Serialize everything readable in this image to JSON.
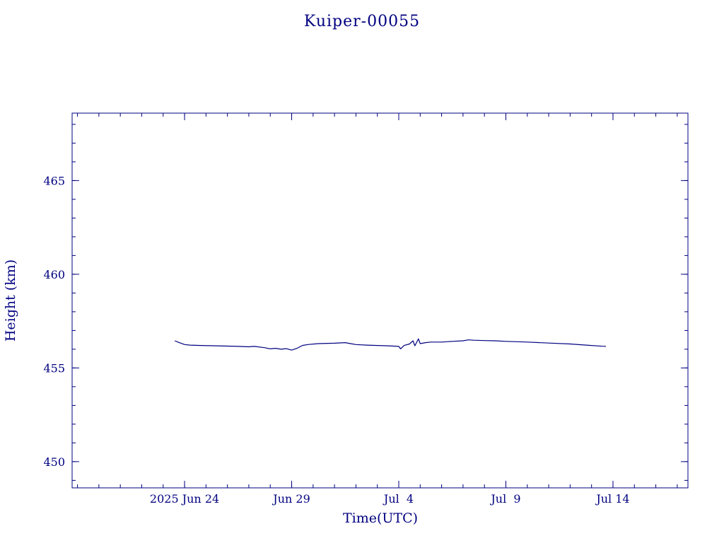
{
  "colors": {
    "ink": "#000080",
    "background": "#ffffff"
  },
  "chart_data": {
    "type": "line",
    "title": "Kuiper-00055",
    "xlabel": "Time(UTC)",
    "ylabel": "Height (km)",
    "x_axis": {
      "type": "date",
      "range": [
        "2025-06-18T18:00",
        "2025-07-17T12:00"
      ],
      "ticks": [
        {
          "date": "2025-06-24",
          "label": "2025 Jun 24"
        },
        {
          "date": "2025-06-29",
          "label": "Jun 29"
        },
        {
          "date": "2025-07-04",
          "label": "Jul  4"
        },
        {
          "date": "2025-07-09",
          "label": "Jul  9"
        },
        {
          "date": "2025-07-14",
          "label": "Jul 14"
        }
      ],
      "minor_tick_interval_days": 1
    },
    "y_axis": {
      "range": [
        448.6,
        468.6
      ],
      "ticks": [
        450,
        455,
        460,
        465
      ],
      "minor_tick_interval": 1
    },
    "grid": false,
    "series": [
      {
        "points": [
          [
            "2025-06-23T13:00",
            456.45
          ],
          [
            "2025-06-23T18:00",
            456.35
          ],
          [
            "2025-06-24T00:00",
            456.25
          ],
          [
            "2025-06-24T06:00",
            456.22
          ],
          [
            "2025-06-24T18:00",
            456.2
          ],
          [
            "2025-06-25T12:00",
            456.18
          ],
          [
            "2025-06-26T12:00",
            456.15
          ],
          [
            "2025-06-27T00:00",
            456.13
          ],
          [
            "2025-06-27T06:00",
            456.15
          ],
          [
            "2025-06-27T18:00",
            456.08
          ],
          [
            "2025-06-28T00:00",
            456.02
          ],
          [
            "2025-06-28T06:00",
            456.05
          ],
          [
            "2025-06-28T12:00",
            456.0
          ],
          [
            "2025-06-28T18:00",
            456.03
          ],
          [
            "2025-06-29T00:00",
            455.95
          ],
          [
            "2025-06-29T06:00",
            456.05
          ],
          [
            "2025-06-29T12:00",
            456.2
          ],
          [
            "2025-06-29T18:00",
            456.25
          ],
          [
            "2025-06-30T06:00",
            456.3
          ],
          [
            "2025-07-01T00:00",
            456.32
          ],
          [
            "2025-07-01T12:00",
            456.35
          ],
          [
            "2025-07-01T18:00",
            456.3
          ],
          [
            "2025-07-02T00:00",
            456.25
          ],
          [
            "2025-07-02T12:00",
            456.22
          ],
          [
            "2025-07-03T00:00",
            456.2
          ],
          [
            "2025-07-03T12:00",
            456.18
          ],
          [
            "2025-07-04T00:00",
            456.15
          ],
          [
            "2025-07-04T02:00",
            456.02
          ],
          [
            "2025-07-04T06:00",
            456.2
          ],
          [
            "2025-07-04T12:00",
            456.28
          ],
          [
            "2025-07-04T16:00",
            456.45
          ],
          [
            "2025-07-04T18:00",
            456.18
          ],
          [
            "2025-07-04T22:00",
            456.55
          ],
          [
            "2025-07-05T00:00",
            456.3
          ],
          [
            "2025-07-05T06:00",
            456.35
          ],
          [
            "2025-07-05T12:00",
            456.38
          ],
          [
            "2025-07-06T00:00",
            456.38
          ],
          [
            "2025-07-06T12:00",
            456.42
          ],
          [
            "2025-07-07T00:00",
            456.45
          ],
          [
            "2025-07-07T06:00",
            456.5
          ],
          [
            "2025-07-07T12:00",
            456.48
          ],
          [
            "2025-07-08T00:00",
            456.46
          ],
          [
            "2025-07-08T12:00",
            456.45
          ],
          [
            "2025-07-09T00:00",
            456.42
          ],
          [
            "2025-07-10T00:00",
            456.38
          ],
          [
            "2025-07-11T00:00",
            456.33
          ],
          [
            "2025-07-12T00:00",
            456.28
          ],
          [
            "2025-07-12T18:00",
            456.22
          ],
          [
            "2025-07-13T12:00",
            456.16
          ],
          [
            "2025-07-13T16:00",
            456.15
          ]
        ]
      }
    ]
  }
}
